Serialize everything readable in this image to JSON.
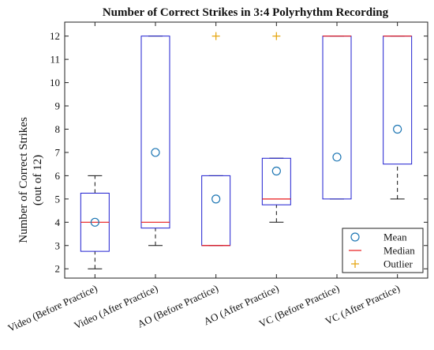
{
  "chart_data": {
    "type": "box",
    "title": "Number of Correct Strikes in 3:4 Polyrhythm Recording",
    "ylabel_lines": [
      "Number of Correct Strikes",
      "(out of 12)"
    ],
    "xlabel": "",
    "ylim": [
      1.6,
      12.6
    ],
    "yticks": [
      2,
      3,
      4,
      5,
      6,
      7,
      8,
      9,
      10,
      11,
      12
    ],
    "grid": false,
    "legend_position": "bottom-right",
    "legend": [
      "Mean",
      "Median",
      "Outlier"
    ],
    "colors": {
      "box": "#1f1fd0",
      "median": "#e8191a",
      "mean": "#1f77b4",
      "outlier": "#e6a817",
      "whisker": "#111111"
    },
    "categories": [
      "Video (Before Practice)",
      "Video (After Practice)",
      "AO (Before Practice)",
      "AO (After Practice)",
      "VC (Before Practice)",
      "VC (After Practice)"
    ],
    "boxes": [
      {
        "q1": 2.75,
        "median": 4,
        "q3": 5.25,
        "whisker_low": 2,
        "whisker_high": 6,
        "mean": 4.0,
        "outliers": []
      },
      {
        "q1": 3.75,
        "median": 4,
        "q3": 12,
        "whisker_low": 3,
        "whisker_high": 12,
        "mean": 7.0,
        "outliers": []
      },
      {
        "q1": 3,
        "median": 3,
        "q3": 6,
        "whisker_low": 3,
        "whisker_high": 6,
        "mean": 5.0,
        "outliers": [
          12
        ]
      },
      {
        "q1": 4.75,
        "median": 5,
        "q3": 6.75,
        "whisker_low": 4,
        "whisker_high": 6.75,
        "mean": 6.2,
        "outliers": [
          12
        ]
      },
      {
        "q1": 5,
        "median": 12,
        "q3": 12,
        "whisker_low": 5,
        "whisker_high": 12,
        "mean": 6.8,
        "outliers": []
      },
      {
        "q1": 6.5,
        "median": 12,
        "q3": 12,
        "whisker_low": 5,
        "whisker_high": 12,
        "mean": 8.0,
        "outliers": []
      }
    ]
  }
}
